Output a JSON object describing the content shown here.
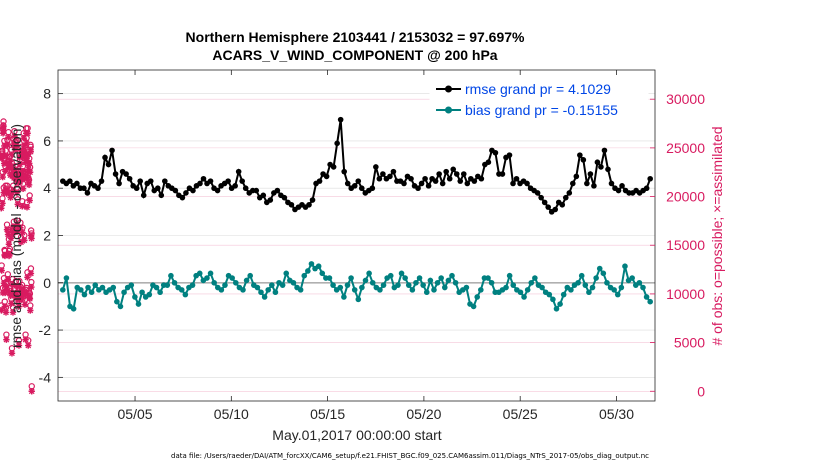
{
  "chart_data": {
    "type": "line",
    "title_line1": "Northern Hemisphere 2103441 / 2153032 = 97.697%",
    "title_line2": "ACARS_V_WIND_COMPONENT @ 200 hPa",
    "xlabel": "May.01,2017 00:00:00 start",
    "ylabel_left": "rmse and bias (model - observation)",
    "ylabel_right": "# of obs: o=possible; ×=assimilated",
    "footer": "data file: /Users/raeder/DAI/ATM_forcXX/CAM6_setup/f.e21.FHIST_BGC.f09_025.CAM6assim.011/Diags_NTrS_2017-05/obs_diag_output.nc",
    "x_range_days": [
      1.0,
      32.0
    ],
    "x_ticks": [
      {
        "day": 5,
        "label": "05/05"
      },
      {
        "day": 10,
        "label": "05/10"
      },
      {
        "day": 15,
        "label": "05/15"
      },
      {
        "day": 20,
        "label": "05/20"
      },
      {
        "day": 25,
        "label": "05/25"
      },
      {
        "day": 30,
        "label": "05/30"
      }
    ],
    "ylim_left": [
      -5,
      9
    ],
    "y_ticks_left": [
      "-4",
      "-2",
      "0",
      "2",
      "4",
      "6",
      "8"
    ],
    "ylim_right": [
      -1000,
      33000
    ],
    "y_ticks_right": [
      "0",
      "5000",
      "10000",
      "15000",
      "20000",
      "25000",
      "30000"
    ],
    "legend": [
      {
        "label": "rmse grand pr = 4.1029",
        "color": "#000000"
      },
      {
        "label": "bias grand pr = -0.15155",
        "color": "#008080"
      }
    ],
    "series_rmse": [
      4.3,
      4.2,
      4.3,
      4.1,
      4.2,
      4.0,
      4.0,
      3.8,
      4.2,
      4.1,
      4.0,
      4.3,
      5.3,
      5.0,
      5.6,
      4.6,
      4.2,
      4.7,
      4.6,
      4.4,
      4.1,
      4.0,
      4.3,
      3.7,
      4.2,
      4.3,
      3.9,
      4.0,
      3.7,
      4.3,
      4.1,
      4.0,
      3.9,
      3.7,
      3.6,
      3.8,
      4.0,
      3.9,
      4.1,
      4.2,
      4.4,
      4.2,
      4.3,
      4.0,
      3.9,
      4.1,
      4.2,
      4.3,
      4.0,
      4.1,
      4.7,
      4.3,
      4.0,
      3.8,
      3.9,
      3.9,
      3.6,
      3.7,
      3.4,
      3.5,
      3.8,
      3.9,
      3.7,
      3.6,
      3.4,
      3.3,
      3.1,
      3.2,
      3.3,
      3.2,
      3.3,
      3.5,
      4.2,
      4.3,
      4.6,
      4.5,
      5.0,
      4.9,
      5.9,
      6.9,
      4.7,
      4.2,
      4.0,
      4.1,
      4.3,
      4.0,
      3.8,
      3.9,
      4.0,
      4.9,
      4.4,
      4.6,
      4.4,
      4.5,
      4.7,
      4.3,
      4.3,
      4.2,
      4.5,
      4.4,
      4.1,
      4.0,
      4.2,
      4.4,
      4.1,
      4.4,
      4.3,
      4.6,
      4.2,
      4.7,
      4.4,
      4.8,
      4.6,
      4.3,
      4.6,
      4.2,
      4.4,
      4.3,
      4.5,
      4.4,
      5.0,
      5.1,
      5.6,
      5.5,
      4.6,
      4.6,
      5.3,
      5.4,
      4.2,
      4.4,
      4.2,
      4.3,
      4.2,
      4.0,
      3.9,
      3.8,
      3.6,
      3.4,
      3.2,
      3.0,
      3.1,
      3.4,
      3.3,
      3.6,
      3.8,
      4.2,
      4.5,
      5.4,
      5.2,
      4.2,
      4.6,
      4.1,
      5.1,
      4.9,
      5.6,
      4.8,
      4.2,
      4.0,
      3.9,
      4.1,
      3.9,
      3.8,
      3.8,
      3.9,
      3.8,
      3.9,
      4.0,
      4.4
    ],
    "series_bias": [
      -0.3,
      0.2,
      -1.0,
      -1.1,
      -0.2,
      -0.3,
      -0.5,
      -0.2,
      -0.4,
      -0.1,
      -0.3,
      -0.2,
      -0.4,
      -0.3,
      -0.2,
      -0.8,
      -1.0,
      -0.4,
      -0.2,
      -0.1,
      -0.6,
      -0.9,
      -0.4,
      -0.6,
      -0.5,
      -0.1,
      -0.2,
      -0.4,
      -0.1,
      -0.1,
      0.3,
      0.0,
      -0.2,
      -0.3,
      -0.5,
      -0.2,
      -0.1,
      0.3,
      0.4,
      0.1,
      0.2,
      0.4,
      0.0,
      -0.2,
      -0.3,
      -0.1,
      0.3,
      0.2,
      0.0,
      -0.2,
      -0.3,
      0.1,
      0.3,
      -0.1,
      -0.2,
      -0.4,
      -0.6,
      -0.3,
      -0.1,
      -0.4,
      0.0,
      -0.1,
      0.4,
      0.1,
      0.0,
      -0.2,
      -0.3,
      0.3,
      0.5,
      0.8,
      0.6,
      0.7,
      0.4,
      0.2,
      0.2,
      -0.1,
      -0.3,
      -0.2,
      -0.6,
      -0.1,
      0.2,
      -0.3,
      -0.7,
      -0.2,
      0.1,
      0.4,
      0.0,
      -0.2,
      -0.3,
      -0.1,
      0.2,
      0.3,
      -0.2,
      -0.1,
      0.4,
      0.2,
      -0.1,
      -0.3,
      0.0,
      0.2,
      -0.1,
      -0.4,
      0.1,
      -0.3,
      0.0,
      0.2,
      -0.2,
      0.1,
      0.3,
      0.0,
      -0.4,
      -0.3,
      -0.2,
      -0.9,
      -1.0,
      -0.6,
      -0.3,
      0.2,
      0.2,
      0.0,
      -0.4,
      -0.4,
      -0.3,
      -0.2,
      0.3,
      -0.1,
      -0.3,
      -0.4,
      -0.6,
      -0.3,
      0.0,
      0.2,
      -0.1,
      -0.2,
      -0.4,
      -0.5,
      -0.7,
      -1.1,
      -0.9,
      -0.5,
      -0.2,
      -0.3,
      -0.1,
      0.0,
      0.3,
      -0.1,
      -0.4,
      -0.2,
      0.2,
      0.6,
      0.4,
      0.0,
      -0.2,
      -0.3,
      -0.5,
      -0.2,
      0.7,
      0.1,
      0.2,
      -0.1,
      0.0,
      -0.2,
      -0.6,
      -0.8
    ],
    "obs_possible": [
      18800,
      8300,
      12400,
      23900,
      24100,
      24200,
      19300,
      22000,
      10100,
      26500,
      26800,
      27200,
      20400,
      11100,
      23400,
      25200,
      14000,
      8700,
      13900,
      10100,
      22600,
      20600,
      24200,
      8100,
      10700,
      5300,
      20300,
      10500,
      16600,
      20600,
      25300,
      25300,
      11500,
      16100,
      23200,
      26100,
      23000,
      15100,
      13900,
      10100,
      23200,
      10100,
      14100,
      23600,
      22200,
      19900,
      9800,
      15700,
      20200,
      9000,
      24300,
      23000,
      3900,
      22100,
      11000,
      16100,
      22500,
      8100,
      20600,
      16400,
      25400,
      16900,
      21900,
      10000,
      26200,
      25100,
      10000,
      24800,
      21900,
      22600,
      25100,
      10800,
      16400,
      21700,
      9600,
      25200,
      20400,
      16400,
      17000,
      21600,
      19200,
      9400,
      22000,
      22300,
      22100,
      8700,
      4700,
      21500,
      10800,
      9400,
      24000,
      23300,
      21500,
      16800,
      22000,
      10200,
      15300,
      21800,
      9800,
      24600,
      24200,
      10400,
      19000,
      16300,
      9500,
      22600,
      20800,
      24200,
      22000,
      26000,
      9800,
      25200,
      15500,
      21800,
      24500,
      8900,
      23900,
      22000,
      5300,
      23500,
      9900,
      26500,
      22000,
      25500,
      10100,
      18900,
      23700,
      11700,
      26500,
      24300,
      21900,
      4700,
      21400,
      22800,
      9800,
      21200,
      23400,
      9600,
      19600,
      9500,
      22500,
      8300,
      24800,
      24600,
      12100,
      16000,
      10700,
      15700,
      0
    ],
    "obs_assimilated": [
      18800,
      8300,
      12400,
      23900,
      24100,
      24200,
      19300,
      22000,
      10100,
      26500,
      26800,
      27200,
      20400,
      11100,
      23400,
      25200,
      14000,
      8700,
      13900,
      10100,
      22600,
      20600,
      24200,
      8100,
      10700,
      5300,
      20300,
      10500,
      16600,
      20600,
      25300,
      25300,
      11500,
      16100,
      23200,
      26100,
      23000,
      15100,
      13900,
      10100,
      23200,
      10100,
      14100,
      23600,
      22200,
      19900,
      9800,
      15700,
      20200,
      9000,
      24300,
      23000,
      3900,
      22100,
      11000,
      16100,
      22500,
      8100,
      20600,
      16400,
      25400,
      16900,
      21900,
      10000,
      26200,
      25100,
      10000,
      24800,
      21900,
      22600,
      25100,
      10800,
      16400,
      21700,
      9600,
      25200,
      20400,
      16400,
      17000,
      21600,
      19200,
      9400,
      22000,
      22300,
      22100,
      8700,
      4700,
      21500,
      10800,
      9400,
      24000,
      23300,
      21500,
      16800,
      22000,
      10200,
      15300,
      21800,
      9800,
      24600,
      24200,
      10400,
      19000,
      16300,
      9500,
      22600,
      20800,
      24200,
      22000,
      26000,
      9800,
      25200,
      15500,
      21800,
      24500,
      8900,
      23900,
      22000,
      5300,
      23500,
      9900,
      26500,
      22000,
      25500,
      10100,
      18900,
      23700,
      11700,
      26500,
      24300,
      21900,
      4700,
      21400,
      22800,
      9800,
      21200,
      23400,
      9600,
      19600,
      9500,
      22500,
      8300,
      24800,
      24600,
      12100,
      16000,
      10700,
      15700,
      0
    ]
  }
}
